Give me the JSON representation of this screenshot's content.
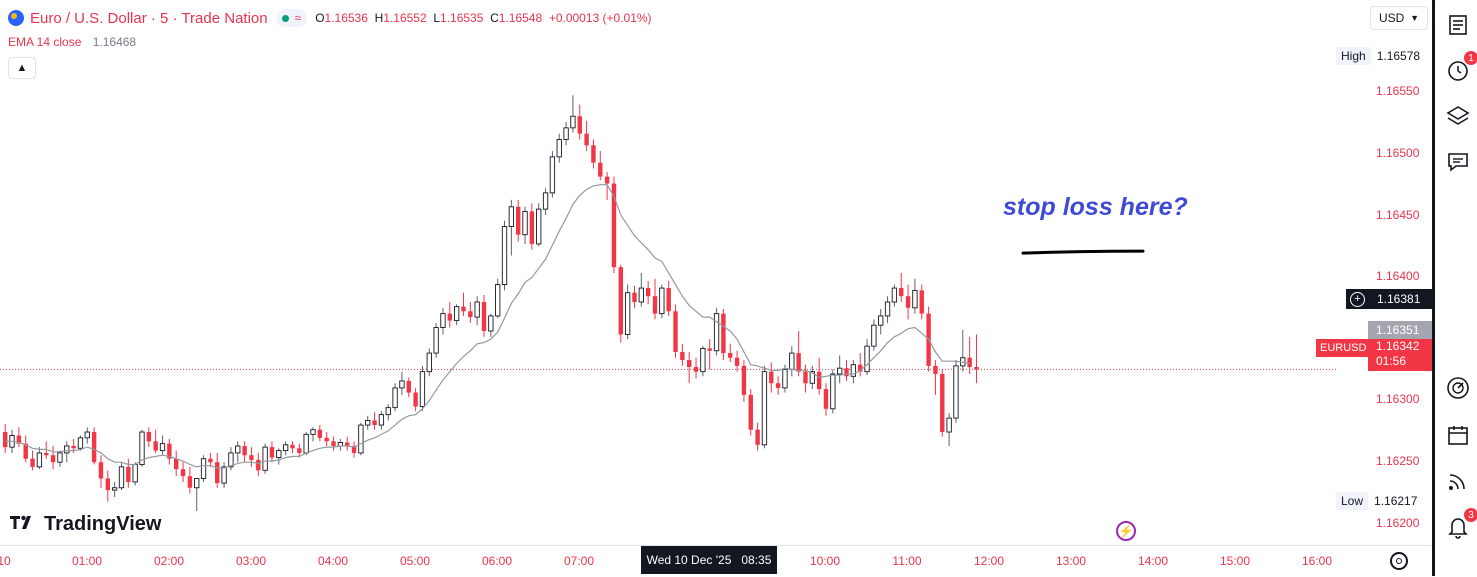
{
  "header": {
    "symbol_title": "Euro / U.S. Dollar · 5 · Trade Nation",
    "status_pill": "≈",
    "ohlc": {
      "open_key": "O",
      "open": "1.16536",
      "high_key": "H",
      "high": "1.16552",
      "low_key": "L",
      "low": "1.16535",
      "close_key": "C",
      "close": "1.16548",
      "change": "+0.00013 (+0.01%)"
    },
    "ema_label": "EMA 14 close",
    "ema_value": "1.16468",
    "collapse_icon": "chevron-up",
    "currency": "USD",
    "currency_icon": "chevron-down"
  },
  "price_axis": {
    "ticks": [
      "1.16550",
      "1.16500",
      "1.16450",
      "1.16400",
      "1.16300",
      "1.16250",
      "1.16200"
    ],
    "high_label": "High",
    "high_value": "1.16578",
    "low_label": "Low",
    "low_value": "1.16217",
    "crosshair_price": "1.16381",
    "prev_close": "1.16351",
    "symbol_tag": "EURUSD",
    "last_price": "1.16342",
    "countdown": "01:56"
  },
  "time_axis": {
    "labels": [
      "10",
      "01:00",
      "02:00",
      "03:00",
      "04:00",
      "05:00",
      "06:00",
      "07:00",
      "10:00",
      "11:00",
      "12:00",
      "13:00",
      "14:00",
      "15:00",
      "16:00"
    ],
    "cursor_date": "Wed 10 Dec '25",
    "cursor_time": "08:35"
  },
  "annotation": "stop loss here?",
  "brand": "TradingView",
  "toolbar": {
    "icons": [
      "watchlist-icon",
      "alerts-clock-icon",
      "layers-icon",
      "chat-icon",
      "speedometer-icon",
      "calendar-icon",
      "broadcast-icon",
      "notifications-icon"
    ],
    "alerts_badge": "1",
    "notifications_badge": "3"
  },
  "colors": {
    "up": "#ffffff",
    "up_border": "#131722",
    "down": "#f23645",
    "accent_red": "#e8344e",
    "annotation": "#3f4bd4",
    "ema": "#9598a1"
  },
  "chart_data": {
    "type": "candlestick",
    "instrument": "EURUSD",
    "timeframe": "5",
    "ylim": [
      1.16195,
      1.16605
    ],
    "ema_period": 14,
    "high": 1.16578,
    "low": 1.16217,
    "last": 1.16342,
    "annotation_level": 1.16443,
    "candles": [
      [
        1.16288,
        1.16295,
        1.1627,
        1.16275
      ],
      [
        1.16275,
        1.1629,
        1.1627,
        1.16285
      ],
      [
        1.16285,
        1.16292,
        1.16275,
        1.16278
      ],
      [
        1.16278,
        1.16285,
        1.16262,
        1.16265
      ],
      [
        1.16265,
        1.16272,
        1.16255,
        1.16258
      ],
      [
        1.16258,
        1.16275,
        1.16256,
        1.1627
      ],
      [
        1.1627,
        1.1628,
        1.16265,
        1.16268
      ],
      [
        1.16268,
        1.16276,
        1.16256,
        1.16262
      ],
      [
        1.16262,
        1.16272,
        1.16258,
        1.1627
      ],
      [
        1.1627,
        1.1628,
        1.16262,
        1.16276
      ],
      [
        1.16276,
        1.16282,
        1.1627,
        1.16274
      ],
      [
        1.16274,
        1.16285,
        1.16272,
        1.16283
      ],
      [
        1.16283,
        1.16292,
        1.16278,
        1.16288
      ],
      [
        1.16288,
        1.16292,
        1.1626,
        1.16262
      ],
      [
        1.16262,
        1.16268,
        1.1624,
        1.16248
      ],
      [
        1.16248,
        1.16255,
        1.16228,
        1.16238
      ],
      [
        1.16238,
        1.16245,
        1.16232,
        1.1624
      ],
      [
        1.1624,
        1.16262,
        1.16238,
        1.16258
      ],
      [
        1.16258,
        1.16265,
        1.1624,
        1.16245
      ],
      [
        1.16245,
        1.16262,
        1.16242,
        1.1626
      ],
      [
        1.1626,
        1.1629,
        1.16258,
        1.16288
      ],
      [
        1.16288,
        1.16292,
        1.16275,
        1.1628
      ],
      [
        1.1628,
        1.1629,
        1.1627,
        1.16272
      ],
      [
        1.16272,
        1.16285,
        1.16268,
        1.16278
      ],
      [
        1.16278,
        1.16282,
        1.1626,
        1.16265
      ],
      [
        1.16265,
        1.16272,
        1.1625,
        1.16256
      ],
      [
        1.16256,
        1.16262,
        1.16245,
        1.1625
      ],
      [
        1.1625,
        1.16258,
        1.16235,
        1.1624
      ],
      [
        1.1624,
        1.16245,
        1.1622,
        1.16248
      ],
      [
        1.16248,
        1.16268,
        1.16245,
        1.16265
      ],
      [
        1.16265,
        1.1627,
        1.16258,
        1.16262
      ],
      [
        1.16262,
        1.1627,
        1.1624,
        1.16244
      ],
      [
        1.16244,
        1.16262,
        1.1624,
        1.16258
      ],
      [
        1.16258,
        1.16275,
        1.16255,
        1.1627
      ],
      [
        1.1627,
        1.1628,
        1.16262,
        1.16276
      ],
      [
        1.16276,
        1.1628,
        1.16262,
        1.16268
      ],
      [
        1.16268,
        1.16275,
        1.16258,
        1.16264
      ],
      [
        1.16264,
        1.1627,
        1.1625,
        1.16255
      ],
      [
        1.16255,
        1.16278,
        1.16252,
        1.16275
      ],
      [
        1.16275,
        1.1628,
        1.16262,
        1.16266
      ],
      [
        1.16266,
        1.16274,
        1.1626,
        1.16272
      ],
      [
        1.16272,
        1.1628,
        1.16268,
        1.16277
      ],
      [
        1.16277,
        1.1628,
        1.1627,
        1.16274
      ],
      [
        1.16274,
        1.16278,
        1.16266,
        1.1627
      ],
      [
        1.1627,
        1.16288,
        1.16268,
        1.16286
      ],
      [
        1.16286,
        1.16292,
        1.1628,
        1.1629
      ],
      [
        1.1629,
        1.16294,
        1.1628,
        1.16283
      ],
      [
        1.16283,
        1.16288,
        1.16276,
        1.1628
      ],
      [
        1.1628,
        1.16284,
        1.16272,
        1.16276
      ],
      [
        1.16276,
        1.16282,
        1.16272,
        1.16279
      ],
      [
        1.16279,
        1.16284,
        1.16272,
        1.16276
      ],
      [
        1.16276,
        1.1628,
        1.16266,
        1.1627
      ],
      [
        1.1627,
        1.16296,
        1.16268,
        1.16294
      ],
      [
        1.16294,
        1.16302,
        1.1629,
        1.16298
      ],
      [
        1.16298,
        1.16305,
        1.1629,
        1.16294
      ],
      [
        1.16294,
        1.16306,
        1.1629,
        1.16303
      ],
      [
        1.16303,
        1.16312,
        1.16298,
        1.16309
      ],
      [
        1.16309,
        1.1633,
        1.16306,
        1.16326
      ],
      [
        1.16326,
        1.1634,
        1.1632,
        1.16332
      ],
      [
        1.16332,
        1.16335,
        1.16318,
        1.16322
      ],
      [
        1.16322,
        1.16326,
        1.16306,
        1.1631
      ],
      [
        1.1631,
        1.16345,
        1.16306,
        1.1634
      ],
      [
        1.1634,
        1.1636,
        1.16336,
        1.16356
      ],
      [
        1.16356,
        1.16382,
        1.16352,
        1.16378
      ],
      [
        1.16378,
        1.16395,
        1.16372,
        1.1639
      ],
      [
        1.1639,
        1.164,
        1.16378,
        1.16384
      ],
      [
        1.16384,
        1.16398,
        1.1638,
        1.16396
      ],
      [
        1.16396,
        1.16408,
        1.16388,
        1.16392
      ],
      [
        1.16392,
        1.164,
        1.16382,
        1.16387
      ],
      [
        1.16387,
        1.16405,
        1.1638,
        1.164
      ],
      [
        1.164,
        1.16406,
        1.1637,
        1.16375
      ],
      [
        1.16375,
        1.1639,
        1.1637,
        1.16388
      ],
      [
        1.16388,
        1.1642,
        1.16386,
        1.16415
      ],
      [
        1.16415,
        1.1647,
        1.1641,
        1.16465
      ],
      [
        1.16465,
        1.16488,
        1.1644,
        1.16482
      ],
      [
        1.16482,
        1.16488,
        1.16452,
        1.16458
      ],
      [
        1.16458,
        1.16482,
        1.1645,
        1.16478
      ],
      [
        1.16478,
        1.16485,
        1.16445,
        1.1645
      ],
      [
        1.1645,
        1.16485,
        1.16448,
        1.1648
      ],
      [
        1.1648,
        1.16498,
        1.16475,
        1.16494
      ],
      [
        1.16494,
        1.1653,
        1.1649,
        1.16525
      ],
      [
        1.16525,
        1.16545,
        1.1652,
        1.1654
      ],
      [
        1.1654,
        1.16555,
        1.16535,
        1.1655
      ],
      [
        1.1655,
        1.16578,
        1.16546,
        1.1656
      ],
      [
        1.1656,
        1.1657,
        1.1654,
        1.16545
      ],
      [
        1.16545,
        1.16556,
        1.1653,
        1.16535
      ],
      [
        1.16535,
        1.1654,
        1.16515,
        1.1652
      ],
      [
        1.1652,
        1.1653,
        1.16505,
        1.16508
      ],
      [
        1.16508,
        1.16512,
        1.16488,
        1.16502
      ],
      [
        1.16502,
        1.16508,
        1.16425,
        1.1643
      ],
      [
        1.1643,
        1.16432,
        1.16365,
        1.16372
      ],
      [
        1.16372,
        1.16415,
        1.16368,
        1.16408
      ],
      [
        1.16408,
        1.16414,
        1.16395,
        1.164
      ],
      [
        1.164,
        1.16425,
        1.16396,
        1.16412
      ],
      [
        1.16412,
        1.16418,
        1.16398,
        1.16405
      ],
      [
        1.16405,
        1.1642,
        1.16385,
        1.1639
      ],
      [
        1.1639,
        1.16415,
        1.16386,
        1.16412
      ],
      [
        1.16412,
        1.16418,
        1.16388,
        1.16392
      ],
      [
        1.16392,
        1.16398,
        1.16352,
        1.16357
      ],
      [
        1.16357,
        1.16364,
        1.16345,
        1.1635
      ],
      [
        1.1635,
        1.16357,
        1.1633,
        1.16344
      ],
      [
        1.16344,
        1.16352,
        1.16334,
        1.1634
      ],
      [
        1.1634,
        1.16362,
        1.16336,
        1.1636
      ],
      [
        1.1636,
        1.16368,
        1.16342,
        1.16358
      ],
      [
        1.16358,
        1.16395,
        1.16354,
        1.1639
      ],
      [
        1.1639,
        1.16394,
        1.1635,
        1.16356
      ],
      [
        1.16356,
        1.16364,
        1.16348,
        1.16352
      ],
      [
        1.16352,
        1.16358,
        1.1634,
        1.16345
      ],
      [
        1.16345,
        1.1635,
        1.16314,
        1.1632
      ],
      [
        1.1632,
        1.16325,
        1.16285,
        1.1629
      ],
      [
        1.1629,
        1.16296,
        1.16272,
        1.16277
      ],
      [
        1.16277,
        1.16345,
        1.16274,
        1.1634
      ],
      [
        1.1634,
        1.16348,
        1.16322,
        1.1633
      ],
      [
        1.1633,
        1.16336,
        1.1632,
        1.16326
      ],
      [
        1.16326,
        1.16346,
        1.16322,
        1.16342
      ],
      [
        1.16342,
        1.16362,
        1.16336,
        1.16356
      ],
      [
        1.16356,
        1.16375,
        1.16336,
        1.1634
      ],
      [
        1.1634,
        1.16346,
        1.16322,
        1.1633
      ],
      [
        1.1633,
        1.16345,
        1.16325,
        1.1634
      ],
      [
        1.1634,
        1.16352,
        1.1632,
        1.16325
      ],
      [
        1.16325,
        1.1633,
        1.16302,
        1.16308
      ],
      [
        1.16308,
        1.16342,
        1.16304,
        1.16338
      ],
      [
        1.16338,
        1.16354,
        1.1633,
        1.16343
      ],
      [
        1.16343,
        1.1635,
        1.16332,
        1.16336
      ],
      [
        1.16336,
        1.1635,
        1.1633,
        1.16346
      ],
      [
        1.16346,
        1.16356,
        1.16336,
        1.1634
      ],
      [
        1.1634,
        1.16368,
        1.16337,
        1.16362
      ],
      [
        1.16362,
        1.16385,
        1.16358,
        1.1638
      ],
      [
        1.1638,
        1.16394,
        1.16372,
        1.16388
      ],
      [
        1.16388,
        1.16405,
        1.16382,
        1.164
      ],
      [
        1.164,
        1.16415,
        1.16396,
        1.16412
      ],
      [
        1.16412,
        1.16425,
        1.164,
        1.16405
      ],
      [
        1.16405,
        1.16415,
        1.16385,
        1.16395
      ],
      [
        1.16395,
        1.1642,
        1.1639,
        1.1641
      ],
      [
        1.1641,
        1.16415,
        1.16385,
        1.1639
      ],
      [
        1.1639,
        1.16396,
        1.1634,
        1.16345
      ],
      [
        1.16345,
        1.1635,
        1.1632,
        1.16338
      ],
      [
        1.16338,
        1.16342,
        1.16284,
        1.16288
      ],
      [
        1.16288,
        1.16304,
        1.16276,
        1.163
      ],
      [
        1.163,
        1.1635,
        1.16296,
        1.16345
      ],
      [
        1.16345,
        1.16376,
        1.1634,
        1.16352
      ],
      [
        1.16352,
        1.1637,
        1.16338,
        1.16344
      ],
      [
        1.16344,
        1.16372,
        1.1633,
        1.16342
      ]
    ],
    "ema": [
      1.1628,
      1.1628,
      1.16279,
      1.16277,
      1.16274,
      1.16273,
      1.16273,
      1.16271,
      1.16271,
      1.16272,
      1.16272,
      1.16273,
      1.16275,
      1.16273,
      1.1627,
      1.16265,
      1.16262,
      1.16262,
      1.1626,
      1.1626,
      1.16264,
      1.16266,
      1.16267,
      1.16268,
      1.16267,
      1.16265,
      1.16263,
      1.1626,
      1.16258,
      1.16259,
      1.16259,
      1.16257,
      1.16257,
      1.16259,
      1.16261,
      1.16262,
      1.16262,
      1.16261,
      1.16263,
      1.16263,
      1.16264,
      1.16266,
      1.16267,
      1.16267,
      1.1627,
      1.16272,
      1.16274,
      1.16275,
      1.16275,
      1.16276,
      1.16276,
      1.16275,
      1.16278,
      1.16281,
      1.16283,
      1.16286,
      1.16289,
      1.16294,
      1.16299,
      1.16302,
      1.16303,
      1.16308,
      1.16315,
      1.16324,
      1.16333,
      1.1634,
      1.16347,
      1.16353,
      1.16358,
      1.16364,
      1.16365,
      1.16368,
      1.16374,
      1.16386,
      1.16399,
      1.16407,
      1.16417,
      1.16421,
      1.16429,
      1.16437,
      1.16449,
      1.16461,
      1.16472,
      1.16484,
      1.16492,
      1.16497,
      1.165,
      1.16501,
      1.16501,
      1.16491,
      1.16475,
      1.16466,
      1.16457,
      1.16451,
      1.16445,
      1.16438,
      1.16435,
      1.16425,
      1.16415,
      1.16405,
      1.16397,
      1.16392,
      1.16387,
      1.16387,
      1.16383,
      1.16379,
      1.16375,
      1.16368,
      1.16357,
      1.16346,
      1.16345,
      1.16343,
      1.16341,
      1.16341,
      1.16343,
      1.16342,
      1.16341,
      1.16341,
      1.16339,
      1.16335,
      1.16336,
      1.16337,
      1.16337,
      1.16338,
      1.16338,
      1.16341,
      1.16346,
      1.16352,
      1.16358,
      1.16365,
      1.1637,
      1.16373,
      1.16377,
      1.16378,
      1.16373,
      1.16368,
      1.16357,
      1.16349,
      1.16349,
      1.16349,
      1.16348,
      1.16347
    ]
  }
}
